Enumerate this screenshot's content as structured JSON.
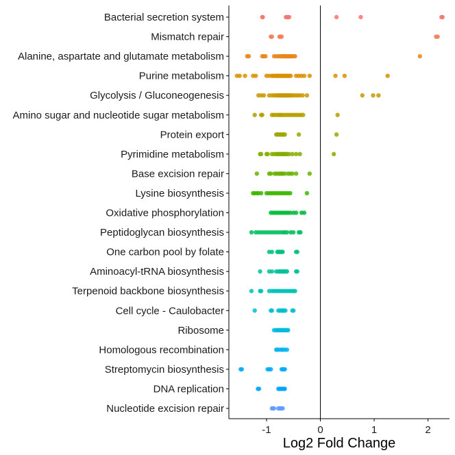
{
  "chart_data": {
    "type": "scatter",
    "xlabel": "Log2 Fold Change",
    "ylabel": "",
    "xlim": [
      -1.7,
      2.4
    ],
    "xticks": [
      -1,
      0,
      1,
      2
    ],
    "xtick_labels": [
      "-1",
      "0",
      "1",
      "2"
    ],
    "zero_line": 0,
    "grid": false,
    "legend": "none",
    "series": [
      {
        "category": "Bacterial secretion system",
        "color": "#F8766D",
        "points": [
          -1.08,
          -1.07,
          -0.64,
          -0.62,
          -0.6,
          -0.58,
          0.3,
          0.75,
          2.25,
          2.27
        ]
      },
      {
        "category": "Mismatch repair",
        "color": "#F37B59",
        "points": [
          -0.92,
          -0.9,
          -0.76,
          -0.74,
          -0.72,
          2.15,
          2.18
        ]
      },
      {
        "category": "Alanine, aspartate and glutamate metabolism",
        "color": "#E7861B",
        "points": [
          -1.36,
          -1.33,
          -1.08,
          -1.05,
          -1.02,
          -0.86,
          -0.82,
          -0.78,
          -0.75,
          -0.72,
          -0.7,
          -0.68,
          -0.66,
          -0.64,
          -0.62,
          -0.6,
          -0.58,
          -0.56,
          -0.53,
          -0.5,
          -0.47,
          1.85
        ]
      },
      {
        "category": "Purine metabolism",
        "color": "#DB8E00",
        "points": [
          -1.55,
          -1.5,
          -1.4,
          -1.25,
          -1.2,
          -1.0,
          -0.95,
          -0.9,
          -0.88,
          -0.85,
          -0.82,
          -0.8,
          -0.78,
          -0.76,
          -0.74,
          -0.72,
          -0.7,
          -0.68,
          -0.66,
          -0.64,
          -0.62,
          -0.6,
          -0.58,
          -0.55,
          -0.45,
          -0.4,
          -0.35,
          -0.3,
          -0.2,
          0.28,
          0.45,
          1.25
        ]
      },
      {
        "category": "Glycolysis / Gluconeogenesis",
        "color": "#C99800",
        "points": [
          -1.15,
          -1.1,
          -1.05,
          -0.95,
          -0.9,
          -0.86,
          -0.83,
          -0.8,
          -0.78,
          -0.76,
          -0.74,
          -0.72,
          -0.7,
          -0.68,
          -0.66,
          -0.64,
          -0.62,
          -0.6,
          -0.58,
          -0.56,
          -0.54,
          -0.5,
          -0.46,
          -0.42,
          -0.38,
          -0.33,
          -0.25,
          0.78,
          0.98,
          1.08
        ]
      },
      {
        "category": "Amino sugar and nucleotide sugar metabolism",
        "color": "#B3A000",
        "points": [
          -1.22,
          -1.1,
          -1.08,
          -0.9,
          -0.86,
          -0.82,
          -0.78,
          -0.75,
          -0.72,
          -0.68,
          -0.64,
          -0.6,
          -0.56,
          -0.52,
          -0.48,
          -0.44,
          -0.4,
          -0.36,
          -0.32,
          0.32
        ]
      },
      {
        "category": "Protein export",
        "color": "#9DA700",
        "points": [
          -0.82,
          -0.8,
          -0.78,
          -0.76,
          -0.74,
          -0.72,
          -0.7,
          -0.68,
          -0.66,
          -0.4,
          0.3
        ]
      },
      {
        "category": "Pyrimidine metabolism",
        "color": "#85AD00",
        "points": [
          -1.12,
          -1.1,
          -1.0,
          -0.98,
          -0.9,
          -0.86,
          -0.82,
          -0.8,
          -0.78,
          -0.76,
          -0.74,
          -0.72,
          -0.7,
          -0.68,
          -0.66,
          -0.64,
          -0.62,
          -0.58,
          -0.52,
          -0.45,
          -0.38,
          0.25
        ]
      },
      {
        "category": "Base excision repair",
        "color": "#68B200",
        "points": [
          -1.18,
          -0.95,
          -0.92,
          -0.85,
          -0.82,
          -0.78,
          -0.75,
          -0.72,
          -0.7,
          -0.66,
          -0.6,
          -0.56,
          -0.52,
          -0.45,
          -0.2
        ]
      },
      {
        "category": "Lysine biosynthesis",
        "color": "#3DB600",
        "points": [
          -1.25,
          -1.22,
          -1.18,
          -1.15,
          -1.1,
          -1.0,
          -0.96,
          -0.92,
          -0.88,
          -0.84,
          -0.8,
          -0.76,
          -0.72,
          -0.68,
          -0.64,
          -0.6,
          -0.56,
          -0.25
        ]
      },
      {
        "category": "Oxidative phosphorylation",
        "color": "#00BA38",
        "points": [
          -0.92,
          -0.88,
          -0.84,
          -0.8,
          -0.76,
          -0.72,
          -0.68,
          -0.64,
          -0.6,
          -0.56,
          -0.5,
          -0.45,
          -0.35,
          -0.3
        ]
      },
      {
        "category": "Peptidoglycan biosynthesis",
        "color": "#00BD5C",
        "points": [
          -1.28,
          -1.2,
          -1.15,
          -1.1,
          -1.05,
          -1.0,
          -0.95,
          -0.9,
          -0.85,
          -0.8,
          -0.75,
          -0.7,
          -0.66,
          -0.62,
          -0.55,
          -0.5,
          -0.4,
          -0.37
        ]
      },
      {
        "category": "One carbon pool by folate",
        "color": "#00BF7D",
        "points": [
          -0.95,
          -0.9,
          -0.8,
          -0.78,
          -0.76,
          -0.74,
          -0.72,
          -0.7,
          -0.45,
          -0.43
        ]
      },
      {
        "category": "Aminoacyl-tRNA biosynthesis",
        "color": "#00C19A",
        "points": [
          -1.12,
          -0.95,
          -0.9,
          -0.82,
          -0.78,
          -0.76,
          -0.74,
          -0.72,
          -0.7,
          -0.68,
          -0.66,
          -0.64,
          -0.62,
          -0.45,
          -0.43
        ]
      },
      {
        "category": "Terpenoid backbone biosynthesis",
        "color": "#00C0B5",
        "points": [
          -1.28,
          -1.12,
          -1.1,
          -0.95,
          -0.9,
          -0.86,
          -0.82,
          -0.78,
          -0.74,
          -0.7,
          -0.66,
          -0.62,
          -0.58,
          -0.54,
          -0.5,
          -0.47
        ]
      },
      {
        "category": "Cell cycle - Caulobacter",
        "color": "#00BECC",
        "points": [
          -1.22,
          -0.92,
          -0.9,
          -0.78,
          -0.75,
          -0.72,
          -0.7,
          -0.68,
          -0.65,
          -0.52,
          -0.5
        ]
      },
      {
        "category": "Ribosome",
        "color": "#00BAE0",
        "points": [
          -0.86,
          -0.82,
          -0.8,
          -0.78,
          -0.76,
          -0.74,
          -0.72,
          -0.7,
          -0.68,
          -0.66,
          -0.64,
          -0.62,
          -0.6
        ]
      },
      {
        "category": "Homologous recombination",
        "color": "#00B4F0",
        "points": [
          -0.82,
          -0.8,
          -0.76,
          -0.72,
          -0.7,
          -0.66,
          -0.62
        ]
      },
      {
        "category": "Streptomycin biosynthesis",
        "color": "#00ACFC",
        "points": [
          -1.48,
          -1.46,
          -0.98,
          -0.95,
          -0.92,
          -0.72,
          -0.7,
          -0.68,
          -0.66
        ]
      },
      {
        "category": "DNA replication",
        "color": "#00A5FF",
        "points": [
          -1.16,
          -1.14,
          -0.78,
          -0.76,
          -0.74,
          -0.72,
          -0.7,
          -0.68,
          -0.66
        ]
      },
      {
        "category": "Nucleotide excision repair",
        "color": "#619CFF",
        "points": [
          -0.9,
          -0.88,
          -0.86,
          -0.78,
          -0.76,
          -0.74,
          -0.72,
          -0.7
        ]
      }
    ]
  }
}
